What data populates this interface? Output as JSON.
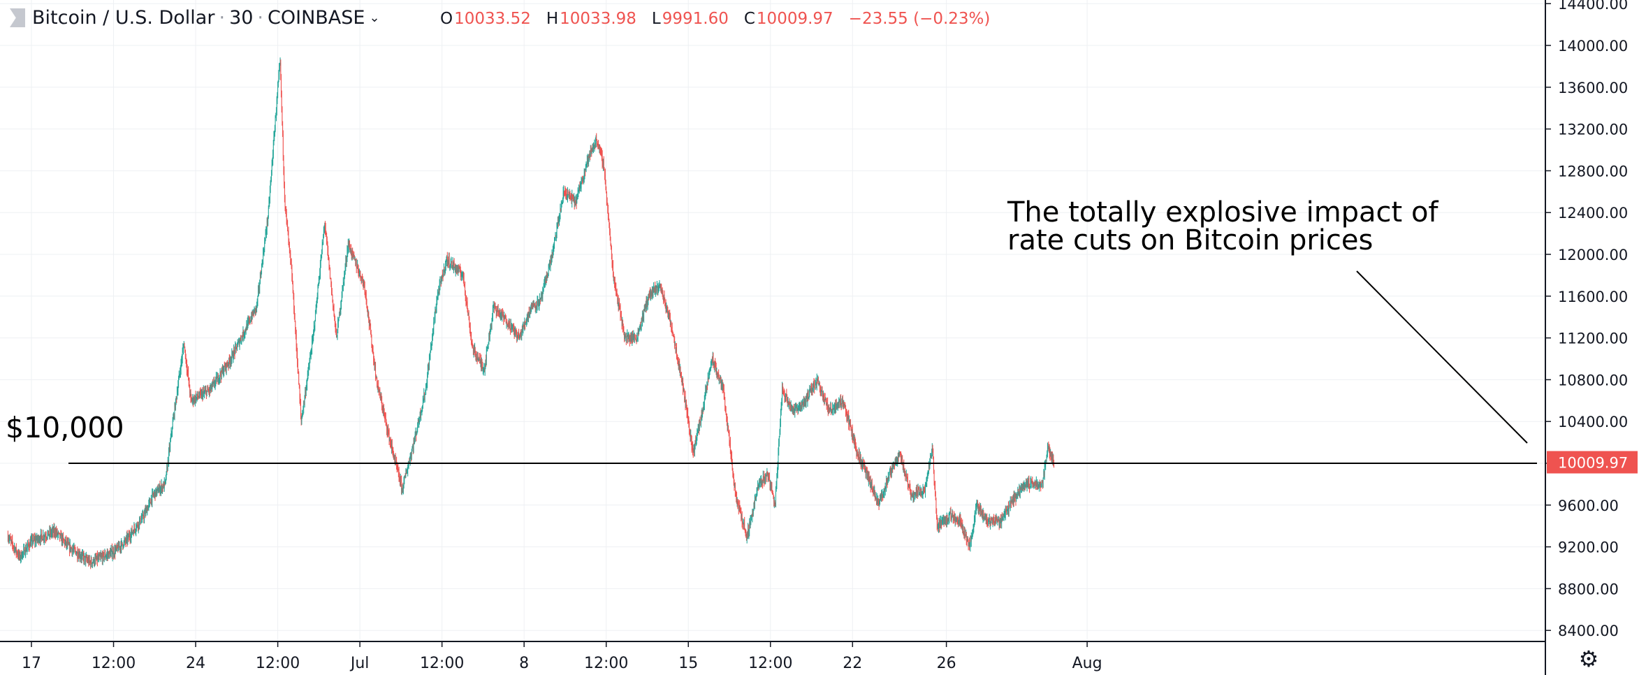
{
  "header": {
    "symbol": "Bitcoin / U.S. Dollar",
    "interval": "30",
    "exchange": "COINBASE",
    "open_label": "O",
    "open": "10033.52",
    "high_label": "H",
    "high": "10033.98",
    "low_label": "L",
    "low": "9991.60",
    "close_label": "C",
    "close": "10009.97",
    "change": "−23.55 (−0.23%)"
  },
  "annotation": {
    "line1": "The totally explosive impact of",
    "line2": "rate cuts on Bitcoin prices",
    "level_label": "$10,000"
  },
  "icons": {
    "settings": "gear-icon",
    "symbol_flag": "flag-icon",
    "dropdown": "chevron-down-icon"
  },
  "colors": {
    "up": "#26a69a",
    "down": "#ef5350",
    "grid": "#eef0f3",
    "price_tag": "#ef5350",
    "axis_text": "#131722"
  },
  "chart_data": {
    "type": "candlestick",
    "title": "Bitcoin / U.S. Dollar · 30 · COINBASE",
    "ylim": [
      8300,
      14500
    ],
    "y_ticks": [
      "8400.00",
      "8800.00",
      "9200.00",
      "9600.00",
      "10000.00",
      "10400.00",
      "10800.00",
      "11200.00",
      "11600.00",
      "12000.00",
      "12400.00",
      "12800.00",
      "13200.00",
      "13600.00",
      "14000.00",
      "14400.00"
    ],
    "x_ticks": [
      "17",
      "12:00",
      "24",
      "12:00",
      "Jul",
      "12:00",
      "8",
      "12:00",
      "15",
      "12:00",
      "22",
      "26",
      "Aug"
    ],
    "x_tick_days": [
      0,
      3.5,
      7,
      10.5,
      14,
      17.5,
      21,
      24.5,
      28,
      31.5,
      35,
      39,
      45
    ],
    "xlim_days": [
      -1,
      46
    ],
    "last_price": "10009.97",
    "horizontal_line": 10000,
    "price_path": [
      [
        -1,
        9300
      ],
      [
        -0.5,
        9100
      ],
      [
        0,
        9250
      ],
      [
        1,
        9350
      ],
      [
        1.6,
        9200
      ],
      [
        2.5,
        9050
      ],
      [
        3.5,
        9150
      ],
      [
        4,
        9250
      ],
      [
        4.8,
        9500
      ],
      [
        5.2,
        9700
      ],
      [
        5.7,
        9800
      ],
      [
        6,
        10350
      ],
      [
        6.5,
        11150
      ],
      [
        6.8,
        10600
      ],
      [
        7.6,
        10700
      ],
      [
        8.5,
        11000
      ],
      [
        9.6,
        11500
      ],
      [
        10.1,
        12400
      ],
      [
        10.4,
        13300
      ],
      [
        10.6,
        13850
      ],
      [
        10.8,
        12500
      ],
      [
        11.1,
        11800
      ],
      [
        11.5,
        10400
      ],
      [
        12,
        11200
      ],
      [
        12.5,
        12300
      ],
      [
        13,
        11200
      ],
      [
        13.5,
        12100
      ],
      [
        14.2,
        11700
      ],
      [
        14.7,
        10800
      ],
      [
        15.3,
        10200
      ],
      [
        15.8,
        9750
      ],
      [
        16.3,
        10200
      ],
      [
        16.8,
        10700
      ],
      [
        17.3,
        11600
      ],
      [
        17.7,
        11950
      ],
      [
        18.4,
        11800
      ],
      [
        18.8,
        11100
      ],
      [
        19.3,
        10900
      ],
      [
        19.7,
        11500
      ],
      [
        20.3,
        11350
      ],
      [
        20.8,
        11200
      ],
      [
        21.3,
        11500
      ],
      [
        21.7,
        11550
      ],
      [
        22.2,
        12000
      ],
      [
        22.7,
        12600
      ],
      [
        23.2,
        12500
      ],
      [
        23.7,
        12900
      ],
      [
        24.1,
        13100
      ],
      [
        24.4,
        12850
      ],
      [
        24.8,
        11800
      ],
      [
        25.3,
        11200
      ],
      [
        25.8,
        11200
      ],
      [
        26.3,
        11600
      ],
      [
        26.8,
        11700
      ],
      [
        27.3,
        11300
      ],
      [
        27.8,
        10700
      ],
      [
        28.2,
        10100
      ],
      [
        28.6,
        10500
      ],
      [
        29,
        11000
      ],
      [
        29.5,
        10700
      ],
      [
        30,
        9700
      ],
      [
        30.5,
        9300
      ],
      [
        31,
        9800
      ],
      [
        31.4,
        9900
      ],
      [
        31.7,
        9600
      ],
      [
        32,
        10700
      ],
      [
        32.5,
        10500
      ],
      [
        33,
        10600
      ],
      [
        33.5,
        10800
      ],
      [
        34,
        10500
      ],
      [
        34.6,
        10600
      ],
      [
        35.2,
        10100
      ],
      [
        35.6,
        9900
      ],
      [
        36.1,
        9600
      ],
      [
        36.6,
        9900
      ],
      [
        37,
        10100
      ],
      [
        37.5,
        9700
      ],
      [
        38.1,
        9750
      ],
      [
        38.4,
        10150
      ],
      [
        38.6,
        9400
      ],
      [
        39.2,
        9500
      ],
      [
        39.6,
        9450
      ],
      [
        40,
        9200
      ],
      [
        40.3,
        9600
      ],
      [
        40.7,
        9450
      ],
      [
        41.3,
        9450
      ],
      [
        41.7,
        9600
      ],
      [
        42.3,
        9800
      ],
      [
        43.1,
        9800
      ],
      [
        43.3,
        10150
      ],
      [
        43.6,
        10010
      ]
    ]
  }
}
